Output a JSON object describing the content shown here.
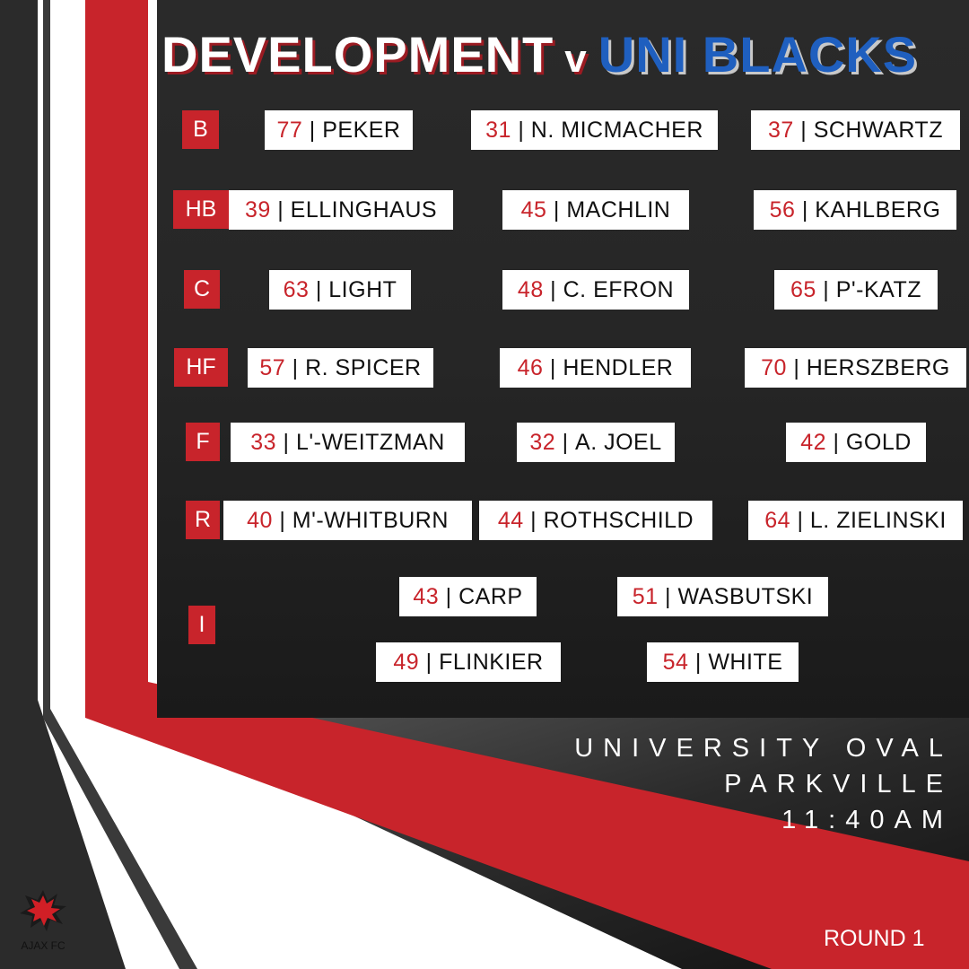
{
  "title": {
    "home": "DEVELOPMENT",
    "versus": "v",
    "away": "UNI BLACKS"
  },
  "colors": {
    "accent": "#c8242b",
    "away": "#1f5fbf",
    "panel": "#1c1c1c"
  },
  "lines": [
    {
      "pos": "B",
      "players": [
        {
          "num": "77",
          "name": "PEKER"
        },
        {
          "num": "31",
          "name": "N. MICMACHER"
        },
        {
          "num": "37",
          "name": "SCHWARTZ"
        }
      ]
    },
    {
      "pos": "HB",
      "players": [
        {
          "num": "39",
          "name": "ELLINGHAUS"
        },
        {
          "num": "45",
          "name": "MACHLIN"
        },
        {
          "num": "56",
          "name": "KAHLBERG"
        }
      ]
    },
    {
      "pos": "C",
      "players": [
        {
          "num": "63",
          "name": "LIGHT"
        },
        {
          "num": "48",
          "name": "C. EFRON"
        },
        {
          "num": "65",
          "name": "P'-KATZ"
        }
      ]
    },
    {
      "pos": "HF",
      "players": [
        {
          "num": "57",
          "name": "R. SPICER"
        },
        {
          "num": "46",
          "name": "HENDLER"
        },
        {
          "num": "70",
          "name": "HERSZBERG"
        }
      ]
    },
    {
      "pos": "F",
      "players": [
        {
          "num": "33",
          "name": "L'-WEITZMAN"
        },
        {
          "num": "32",
          "name": "A. JOEL"
        },
        {
          "num": "42",
          "name": "GOLD"
        }
      ]
    },
    {
      "pos": "R",
      "players": [
        {
          "num": "40",
          "name": "M'-WHITBURN"
        },
        {
          "num": "44",
          "name": "ROTHSCHILD"
        },
        {
          "num": "64",
          "name": "L. ZIELINSKI"
        }
      ]
    },
    {
      "pos": "I",
      "players": [
        {
          "num": "43",
          "name": "CARP"
        },
        {
          "num": "51",
          "name": "WASBUTSKI"
        },
        {
          "num": "49",
          "name": "FLINKIER"
        },
        {
          "num": "54",
          "name": "WHITE"
        }
      ]
    }
  ],
  "venue": {
    "ground": "UNIVERSITY OVAL",
    "suburb": "PARKVILLE",
    "time": "11:40AM"
  },
  "round": "ROUND 1",
  "logo": {
    "text": "AJAX FC",
    "icon": "ajax-star-logo-icon"
  }
}
